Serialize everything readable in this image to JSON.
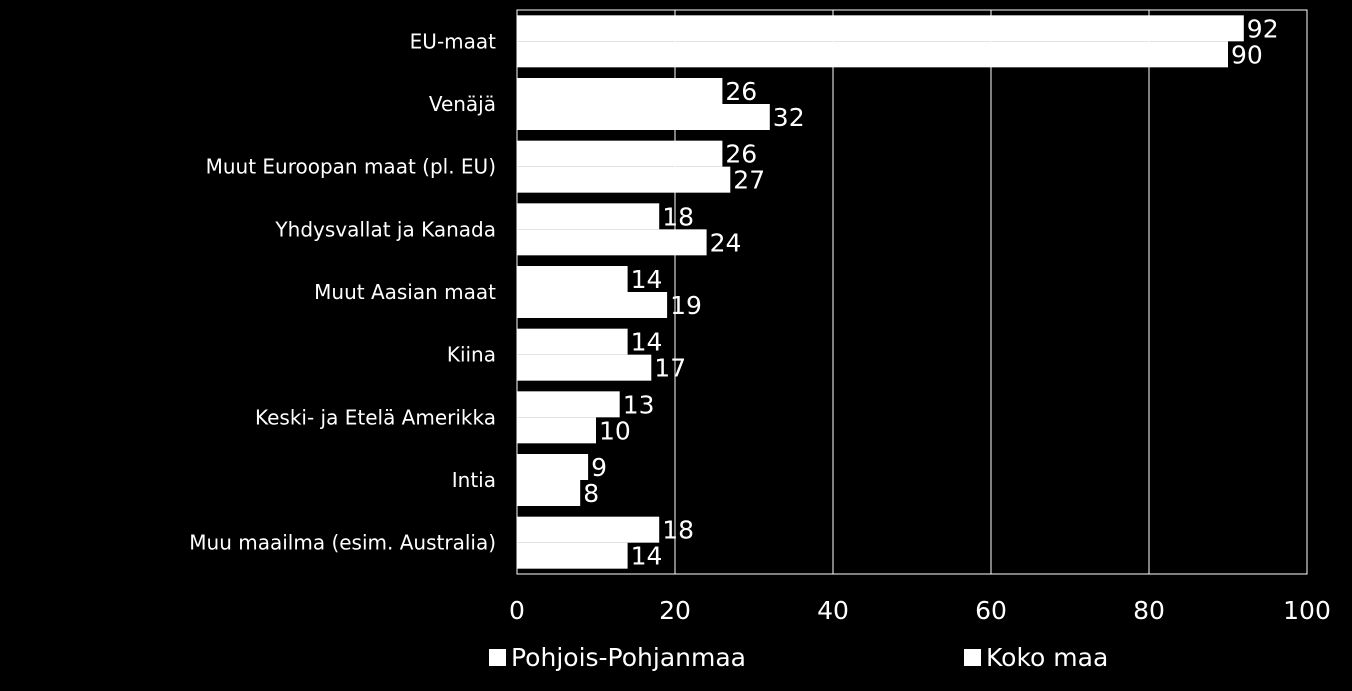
{
  "chart_data": {
    "type": "bar",
    "orientation": "horizontal",
    "categories": [
      "EU-maat",
      "Venäjä",
      "Muut Euroopan maat (pl. EU)",
      "Yhdysvallat ja Kanada",
      "Muut Aasian maat",
      "Kiina",
      "Keski- ja Etelä Amerikka",
      "Intia",
      "Muu maailma (esim. Australia)"
    ],
    "series": [
      {
        "name": "Pohjois-Pohjanmaa",
        "values": [
          92,
          26,
          26,
          18,
          14,
          14,
          13,
          9,
          18
        ]
      },
      {
        "name": "Koko maa",
        "values": [
          90,
          32,
          27,
          24,
          19,
          17,
          10,
          8,
          14
        ]
      }
    ],
    "xlim": [
      0,
      100
    ],
    "xticks": [
      0,
      20,
      40,
      60,
      80,
      100
    ],
    "grid": true,
    "legend_position": "bottom",
    "colors": {
      "background": "#000000",
      "bar": "#ffffff",
      "text": "#ffffff",
      "grid": "#ffffff"
    }
  }
}
